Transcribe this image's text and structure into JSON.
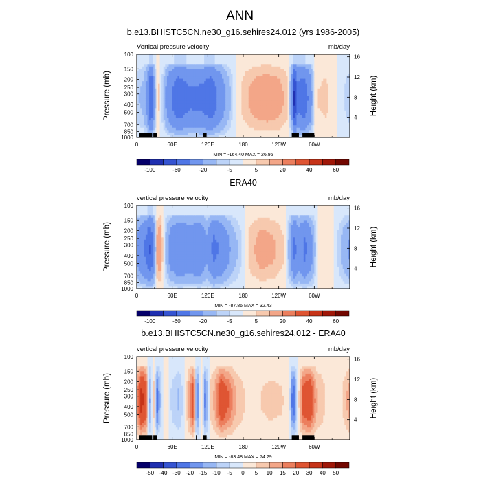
{
  "page_title": "ANN",
  "chart_data": [
    {
      "type": "heatmap",
      "title": "b.e13.BHISTC5CN.ne30_g16.sehires24.012 (yrs 1986-2005)",
      "left_label": "Vertical pressure velocity",
      "right_label": "mb/day",
      "ylabel": "Pressure (mb)",
      "ylabel_right": "Height (km)",
      "x_ticks": [
        "0",
        "60E",
        "120E",
        "180",
        "120W",
        "60W"
      ],
      "x_tick_lons": [
        0,
        60,
        120,
        180,
        240,
        300
      ],
      "xlim": [
        0,
        360
      ],
      "y_ticks": [
        "100",
        "150",
        "200",
        "250",
        "300",
        "400",
        "500",
        "700",
        "850",
        "1000"
      ],
      "y_tick_values": [
        100,
        150,
        200,
        250,
        300,
        400,
        500,
        700,
        850,
        1000
      ],
      "ylim": [
        1000,
        100
      ],
      "height_ticks": [
        "16",
        "12",
        "8",
        "4"
      ],
      "height_tick_values": [
        16,
        12,
        8,
        4
      ],
      "min_max": "MIN = -164.40   MAX = 26.96",
      "colorbar_labels": [
        "-100",
        "-60",
        "-20",
        "-5",
        "5",
        "20",
        "40",
        "60"
      ],
      "colorbar_levels": [
        -120,
        -100,
        -80,
        -60,
        -40,
        -20,
        -10,
        -5,
        0,
        5,
        10,
        20,
        30,
        40,
        50,
        60,
        70
      ],
      "colorbar_colors": [
        "#05006a",
        "#1f2fb0",
        "#3554d2",
        "#4f76e6",
        "#7196ee",
        "#97b7f4",
        "#bcd3f8",
        "#d8e7fb",
        "#fbe8d8",
        "#f7c9ae",
        "#f3a688",
        "#ec7f5e",
        "#df5533",
        "#c63318",
        "#a01708",
        "#730700"
      ],
      "field": {
        "columns": [
          {
            "lon": 0,
            "v": -8
          },
          {
            "lon": 10,
            "v": -10
          },
          {
            "lon": 18,
            "v": -25
          },
          {
            "lon": 24,
            "v": -60
          },
          {
            "lon": 30,
            "v": -15
          },
          {
            "lon": 36,
            "v": 8
          },
          {
            "lon": 42,
            "v": -4
          },
          {
            "lon": 55,
            "v": -30
          },
          {
            "lon": 70,
            "v": -50
          },
          {
            "lon": 90,
            "v": -38
          },
          {
            "lon": 110,
            "v": -40
          },
          {
            "lon": 125,
            "v": -50
          },
          {
            "lon": 140,
            "v": -30
          },
          {
            "lon": 155,
            "v": -12
          },
          {
            "lon": 170,
            "v": 2
          },
          {
            "lon": 185,
            "v": 8
          },
          {
            "lon": 200,
            "v": 12
          },
          {
            "lon": 220,
            "v": 14
          },
          {
            "lon": 240,
            "v": 12
          },
          {
            "lon": 255,
            "v": 6
          },
          {
            "lon": 262,
            "v": -20
          },
          {
            "lon": 266,
            "v": -80
          },
          {
            "lon": 272,
            "v": -40
          },
          {
            "lon": 282,
            "v": -50
          },
          {
            "lon": 292,
            "v": -30
          },
          {
            "lon": 302,
            "v": 4
          },
          {
            "lon": 320,
            "v": 6
          },
          {
            "lon": 345,
            "v": -2
          },
          {
            "lon": 360,
            "v": -8
          }
        ],
        "surface_blocks": [
          [
            4,
            26
          ],
          [
            28,
            34
          ],
          [
            100,
            102
          ],
          [
            112,
            118
          ],
          [
            262,
            274
          ],
          [
            280,
            300
          ]
        ]
      }
    },
    {
      "type": "heatmap",
      "title": "ERA40",
      "left_label": "vertical pressure velocity",
      "right_label": "mb/day",
      "ylabel": "Pressure (mb)",
      "ylabel_right": "Height (km)",
      "x_ticks": [
        "0",
        "60E",
        "120E",
        "180",
        "120W",
        "60W"
      ],
      "x_tick_lons": [
        0,
        60,
        120,
        180,
        240,
        300
      ],
      "xlim": [
        0,
        360
      ],
      "y_ticks": [
        "100",
        "150",
        "200",
        "250",
        "300",
        "400",
        "500",
        "700",
        "850",
        "1000"
      ],
      "y_tick_values": [
        100,
        150,
        200,
        250,
        300,
        400,
        500,
        700,
        850,
        1000
      ],
      "ylim": [
        1000,
        100
      ],
      "height_ticks": [
        "16",
        "12",
        "8",
        "4"
      ],
      "height_tick_values": [
        16,
        12,
        8,
        4
      ],
      "min_max": "MIN = -87.86   MAX = 32.43",
      "colorbar_labels": [
        "-100",
        "-60",
        "-20",
        "-5",
        "5",
        "20",
        "40",
        "60"
      ],
      "colorbar_levels": [
        -120,
        -100,
        -80,
        -60,
        -40,
        -20,
        -10,
        -5,
        0,
        5,
        10,
        20,
        30,
        40,
        50,
        60,
        70
      ],
      "colorbar_colors": [
        "#05006a",
        "#1f2fb0",
        "#3554d2",
        "#4f76e6",
        "#7196ee",
        "#97b7f4",
        "#bcd3f8",
        "#d8e7fb",
        "#fbe8d8",
        "#f7c9ae",
        "#f3a688",
        "#ec7f5e",
        "#df5533",
        "#c63318",
        "#a01708",
        "#730700"
      ],
      "field": {
        "columns": [
          {
            "lon": 0,
            "v": -20
          },
          {
            "lon": 8,
            "v": -30
          },
          {
            "lon": 16,
            "v": -40
          },
          {
            "lon": 22,
            "v": -55
          },
          {
            "lon": 28,
            "v": -35
          },
          {
            "lon": 34,
            "v": 10
          },
          {
            "lon": 40,
            "v": 15
          },
          {
            "lon": 48,
            "v": -8
          },
          {
            "lon": 58,
            "v": -25
          },
          {
            "lon": 72,
            "v": -35
          },
          {
            "lon": 90,
            "v": -28
          },
          {
            "lon": 105,
            "v": -35
          },
          {
            "lon": 118,
            "v": -20
          },
          {
            "lon": 130,
            "v": -40
          },
          {
            "lon": 145,
            "v": -30
          },
          {
            "lon": 160,
            "v": -15
          },
          {
            "lon": 175,
            "v": -6
          },
          {
            "lon": 190,
            "v": 6
          },
          {
            "lon": 210,
            "v": 12
          },
          {
            "lon": 230,
            "v": 10
          },
          {
            "lon": 248,
            "v": 5
          },
          {
            "lon": 258,
            "v": -12
          },
          {
            "lon": 266,
            "v": -40
          },
          {
            "lon": 274,
            "v": -25
          },
          {
            "lon": 284,
            "v": -40
          },
          {
            "lon": 296,
            "v": -20
          },
          {
            "lon": 308,
            "v": 4
          },
          {
            "lon": 330,
            "v": 2
          },
          {
            "lon": 360,
            "v": -20
          }
        ],
        "surface_blocks": []
      }
    },
    {
      "type": "heatmap",
      "title": "b.e13.BHISTC5CN.ne30_g16.sehires24.012 - ERA40",
      "left_label": "vertical pressure velocity",
      "right_label": "mb/day",
      "ylabel": "Pressure (mb)",
      "ylabel_right": "Height (km)",
      "x_ticks": [
        "0",
        "60E",
        "120E",
        "180",
        "120W",
        "60W"
      ],
      "x_tick_lons": [
        0,
        60,
        120,
        180,
        240,
        300
      ],
      "xlim": [
        0,
        360
      ],
      "y_ticks": [
        "100",
        "150",
        "200",
        "250",
        "300",
        "400",
        "500",
        "700",
        "850",
        "1000"
      ],
      "y_tick_values": [
        100,
        150,
        200,
        250,
        300,
        400,
        500,
        700,
        850,
        1000
      ],
      "ylim": [
        1000,
        100
      ],
      "height_ticks": [
        "16",
        "12",
        "8",
        "4"
      ],
      "height_tick_values": [
        16,
        12,
        8,
        4
      ],
      "min_max": "MIN = -83.48   MAX = 74.29",
      "colorbar_labels": [
        "-50",
        "-40",
        "-30",
        "-20",
        "-15",
        "-10",
        "-5",
        "0",
        "5",
        "10",
        "15",
        "20",
        "30",
        "40",
        "50"
      ],
      "colorbar_levels": [
        -60,
        -50,
        -40,
        -30,
        -20,
        -15,
        -10,
        -5,
        0,
        5,
        10,
        15,
        20,
        30,
        40,
        50,
        60
      ],
      "colorbar_colors": [
        "#05006a",
        "#1f2fb0",
        "#3554d2",
        "#4f76e6",
        "#7196ee",
        "#97b7f4",
        "#bcd3f8",
        "#d8e7fb",
        "#fbe8d8",
        "#f7c9ae",
        "#f3a688",
        "#ec7f5e",
        "#df5533",
        "#c63318",
        "#a01708",
        "#730700"
      ],
      "field": {
        "columns": [
          {
            "lon": 0,
            "v": 12
          },
          {
            "lon": 8,
            "v": 30
          },
          {
            "lon": 16,
            "v": 20
          },
          {
            "lon": 22,
            "v": -15
          },
          {
            "lon": 28,
            "v": 8
          },
          {
            "lon": 34,
            "v": -20
          },
          {
            "lon": 40,
            "v": -10
          },
          {
            "lon": 48,
            "v": 4
          },
          {
            "lon": 60,
            "v": -6
          },
          {
            "lon": 72,
            "v": -10
          },
          {
            "lon": 84,
            "v": 3
          },
          {
            "lon": 96,
            "v": 25
          },
          {
            "lon": 102,
            "v": -25
          },
          {
            "lon": 108,
            "v": 8
          },
          {
            "lon": 116,
            "v": -20
          },
          {
            "lon": 124,
            "v": 6
          },
          {
            "lon": 132,
            "v": 10
          },
          {
            "lon": 142,
            "v": 25
          },
          {
            "lon": 155,
            "v": 18
          },
          {
            "lon": 170,
            "v": 8
          },
          {
            "lon": 185,
            "v": 4
          },
          {
            "lon": 205,
            "v": 4
          },
          {
            "lon": 225,
            "v": 6
          },
          {
            "lon": 245,
            "v": 5
          },
          {
            "lon": 258,
            "v": 2
          },
          {
            "lon": 264,
            "v": -25
          },
          {
            "lon": 270,
            "v": -8
          },
          {
            "lon": 280,
            "v": 20
          },
          {
            "lon": 292,
            "v": 25
          },
          {
            "lon": 304,
            "v": 10
          },
          {
            "lon": 320,
            "v": 4
          },
          {
            "lon": 345,
            "v": 3
          },
          {
            "lon": 360,
            "v": 12
          }
        ],
        "surface_blocks": [
          [
            4,
            26
          ],
          [
            28,
            34
          ],
          [
            100,
            102
          ],
          [
            112,
            118
          ],
          [
            262,
            274
          ],
          [
            280,
            300
          ]
        ]
      }
    }
  ]
}
